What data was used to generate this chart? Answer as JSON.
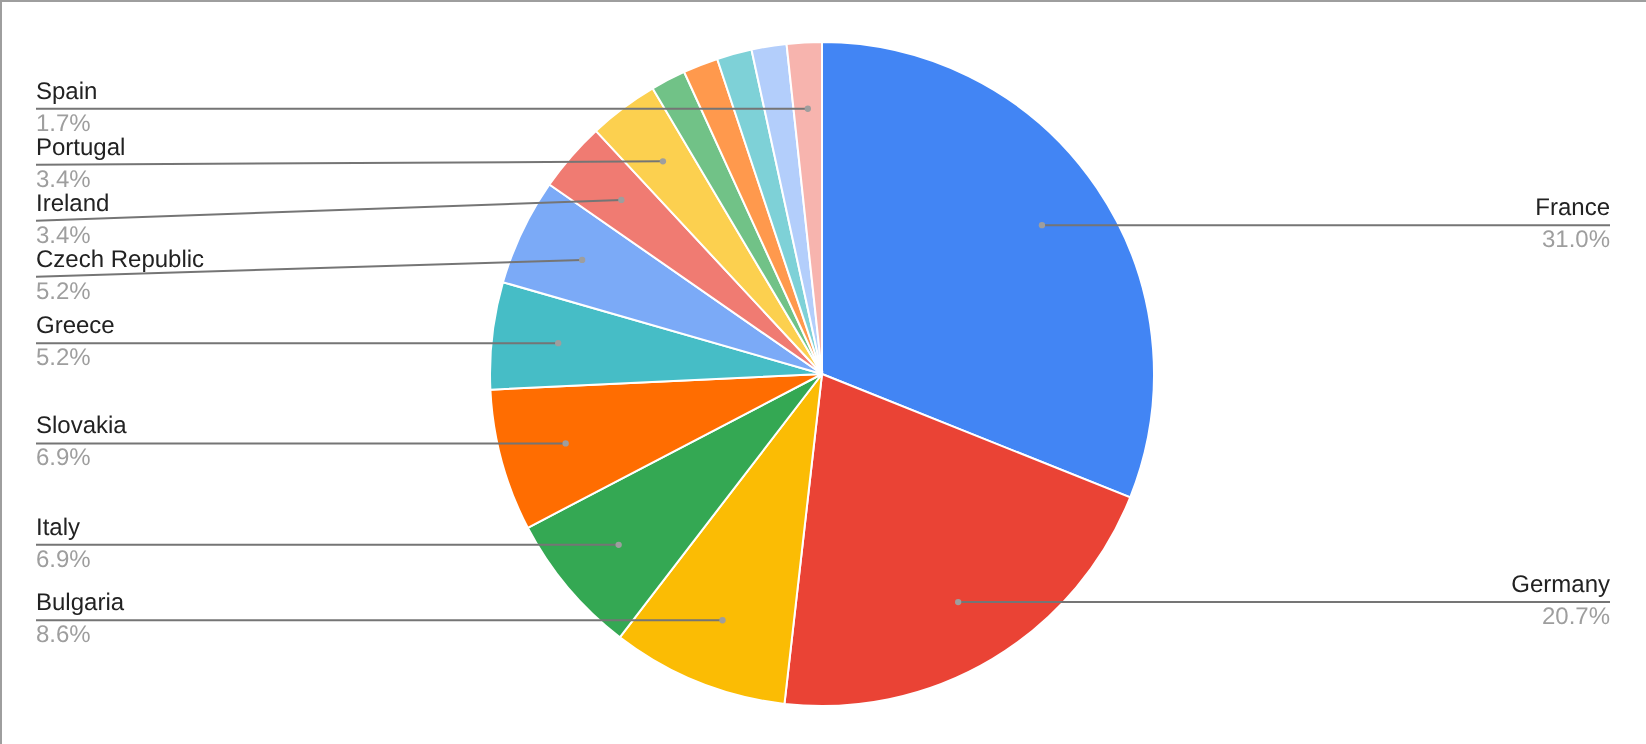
{
  "chart_data": {
    "type": "pie",
    "categories": [
      "France",
      "Germany",
      "Bulgaria",
      "Italy",
      "Slovakia",
      "Greece",
      "Czech Republic",
      "Ireland",
      "Portugal",
      null,
      null,
      null,
      null,
      "Spain"
    ],
    "values": [
      31.0,
      20.7,
      8.6,
      6.9,
      6.9,
      5.2,
      5.2,
      3.4,
      3.4,
      1.7,
      1.7,
      1.7,
      1.7,
      1.7
    ],
    "value_labels": [
      "31.0%",
      "20.7%",
      "8.6%",
      "6.9%",
      "6.9%",
      "5.2%",
      "5.2%",
      "3.4%",
      "3.4%",
      null,
      null,
      null,
      null,
      "1.7%"
    ],
    "colors": [
      "#4285f4",
      "#ea4335",
      "#fbbc04",
      "#34a853",
      "#ff6d01",
      "#46bdc6",
      "#7baaf7",
      "#f07b72",
      "#fcd04f",
      "#71c287",
      "#ff994d",
      "#7ed1d7",
      "#b3cefb",
      "#f7b4ae"
    ]
  }
}
